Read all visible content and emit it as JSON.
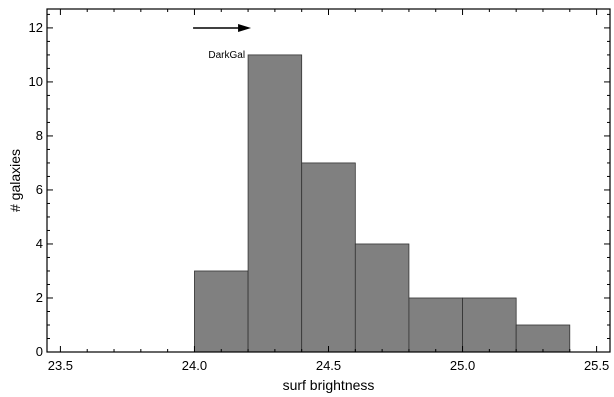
{
  "chart_data": {
    "type": "bar",
    "bins": [
      {
        "from": 24.0,
        "to": 24.2,
        "count": 3
      },
      {
        "from": 24.2,
        "to": 24.4,
        "count": 11
      },
      {
        "from": 24.4,
        "to": 24.6,
        "count": 7
      },
      {
        "from": 24.6,
        "to": 24.8,
        "count": 4
      },
      {
        "from": 24.8,
        "to": 25.0,
        "count": 2
      },
      {
        "from": 25.0,
        "to": 25.2,
        "count": 2
      },
      {
        "from": 25.2,
        "to": 25.4,
        "count": 1
      }
    ],
    "xlabel": "surf brightness",
    "ylabel": "# galaxies",
    "xlim": [
      23.45,
      25.55
    ],
    "ylim": [
      0,
      12.7
    ],
    "xticks": [
      "23.5",
      "24.0",
      "24.5",
      "25.0",
      "25.5"
    ],
    "yticks": [
      "0",
      "2",
      "4",
      "6",
      "8",
      "10",
      "12"
    ],
    "annotation": {
      "text": "DarkGal",
      "arrow": "right"
    },
    "bar_color": "#808080",
    "grid": false
  }
}
